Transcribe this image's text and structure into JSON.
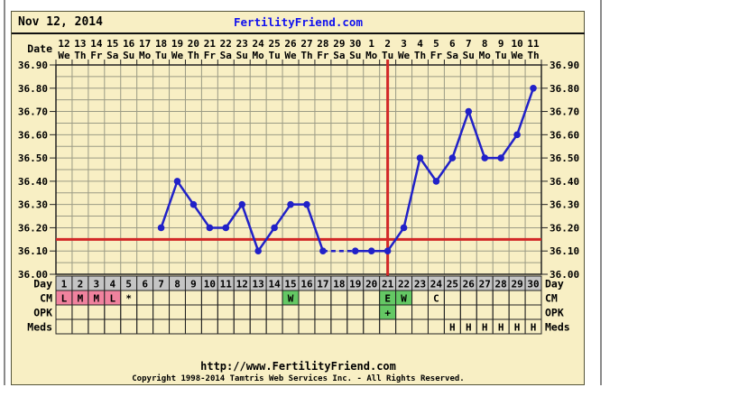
{
  "header": {
    "title_date": "Nov 12, 2014",
    "brand": "FertilityFriend.com"
  },
  "footer": {
    "url": "http://www.FertilityFriend.com",
    "copyright": "Copyright 1998-2014 Tamtris Web Services Inc. - All Rights Reserved."
  },
  "labels": {
    "date": "Date",
    "day": "Day",
    "cm": "CM",
    "opk": "OPK",
    "meds": "Meds"
  },
  "chart_data": {
    "type": "line",
    "title": "Basal body temperature chart (deg C) by cycle day",
    "ylim": [
      36.0,
      36.9
    ],
    "ytick_step": 0.1,
    "grid_minor_step": 0.05,
    "coverline_temp": 36.15,
    "ovulation_line_day": 21,
    "cycle_days": [
      1,
      2,
      3,
      4,
      5,
      6,
      7,
      8,
      9,
      10,
      11,
      12,
      13,
      14,
      15,
      16,
      17,
      18,
      19,
      20,
      21,
      22,
      23,
      24,
      25,
      26,
      27,
      28,
      29,
      30
    ],
    "x_dates": [
      "12",
      "13",
      "14",
      "15",
      "16",
      "17",
      "18",
      "19",
      "20",
      "21",
      "22",
      "23",
      "24",
      "25",
      "26",
      "27",
      "28",
      "29",
      "30",
      "1",
      "2",
      "3",
      "4",
      "5",
      "6",
      "7",
      "8",
      "9",
      "10",
      "11"
    ],
    "x_weekdays": [
      "We",
      "Th",
      "Fr",
      "Sa",
      "Su",
      "Mo",
      "Tu",
      "We",
      "Th",
      "Fr",
      "Sa",
      "Su",
      "Mo",
      "Tu",
      "We",
      "Th",
      "Fr",
      "Sa",
      "Su",
      "Mo",
      "Tu",
      "We",
      "Th",
      "Fr",
      "Sa",
      "Su",
      "Mo",
      "Tu",
      "We",
      "Th"
    ],
    "temps": [
      {
        "day": 7,
        "temp": 36.2
      },
      {
        "day": 8,
        "temp": 36.4
      },
      {
        "day": 9,
        "temp": 36.3
      },
      {
        "day": 10,
        "temp": 36.2
      },
      {
        "day": 11,
        "temp": 36.2
      },
      {
        "day": 12,
        "temp": 36.3
      },
      {
        "day": 13,
        "temp": 36.1
      },
      {
        "day": 14,
        "temp": 36.2
      },
      {
        "day": 15,
        "temp": 36.3
      },
      {
        "day": 16,
        "temp": 36.3
      },
      {
        "day": 17,
        "temp": 36.1
      },
      {
        "day": 19,
        "temp": 36.1
      },
      {
        "day": 20,
        "temp": 36.1
      },
      {
        "day": 21,
        "temp": 36.1
      },
      {
        "day": 22,
        "temp": 36.2
      },
      {
        "day": 23,
        "temp": 36.5
      },
      {
        "day": 24,
        "temp": 36.4
      },
      {
        "day": 25,
        "temp": 36.5
      },
      {
        "day": 26,
        "temp": 36.7
      },
      {
        "day": 27,
        "temp": 36.5
      },
      {
        "day": 28,
        "temp": 36.5
      },
      {
        "day": 29,
        "temp": 36.6
      },
      {
        "day": 30,
        "temp": 36.8
      }
    ],
    "missing_data_days": [
      18
    ],
    "rows": {
      "cm": [
        {
          "day": 1,
          "text": "L",
          "bg": "pink"
        },
        {
          "day": 2,
          "text": "M",
          "bg": "pink"
        },
        {
          "day": 3,
          "text": "M",
          "bg": "pink"
        },
        {
          "day": 4,
          "text": "L",
          "bg": "pink"
        },
        {
          "day": 5,
          "text": "*",
          "bg": null
        },
        {
          "day": 15,
          "text": "W",
          "bg": "green"
        },
        {
          "day": 21,
          "text": "E",
          "bg": "green"
        },
        {
          "day": 22,
          "text": "W",
          "bg": "green"
        },
        {
          "day": 24,
          "text": "C",
          "bg": null
        }
      ],
      "opk": [
        {
          "day": 21,
          "text": "+",
          "bg": "green"
        }
      ],
      "meds": [
        {
          "day": 25,
          "text": "H",
          "bg": null
        },
        {
          "day": 26,
          "text": "H",
          "bg": null
        },
        {
          "day": 27,
          "text": "H",
          "bg": null
        },
        {
          "day": 28,
          "text": "H",
          "bg": null
        },
        {
          "day": 29,
          "text": "H",
          "bg": null
        },
        {
          "day": 30,
          "text": "H",
          "bg": null
        }
      ]
    },
    "legend_position": "none",
    "grid": true,
    "colors": {
      "panel_background": "#F8EFC4",
      "grid": "#9B9B85",
      "axis": "#222222",
      "line": "#2121C8",
      "marker": "#2121C8",
      "red_line": "#D22727",
      "day_row_bg": "#C4C4C4",
      "pink": "#F0829E",
      "green": "#64C864",
      "brand_blue": "#1111EE",
      "text": "#000000"
    }
  }
}
